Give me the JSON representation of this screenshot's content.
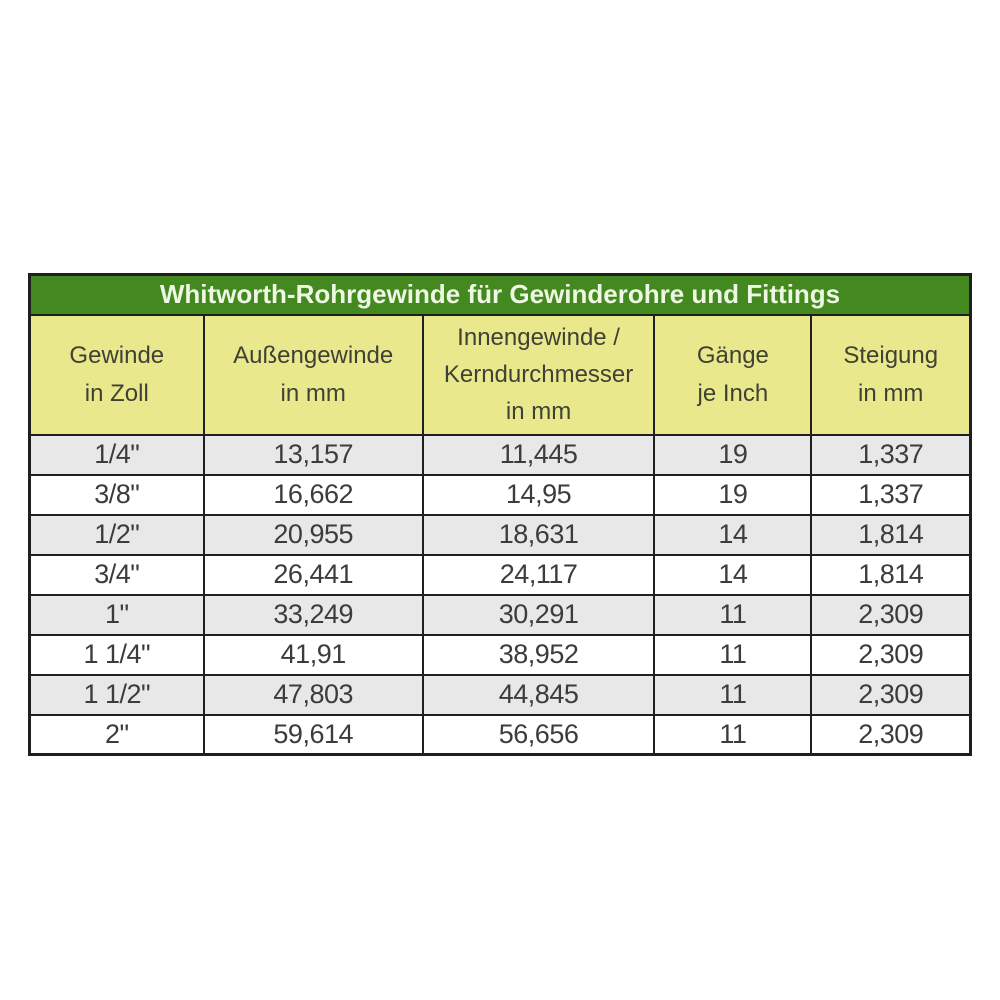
{
  "colors": {
    "title_bg": "#44891f",
    "title_text": "#eef6e4",
    "header_bg": "#e9e88d",
    "header_text": "#3f4134",
    "row_alt_bg": "#e8e8e8",
    "row_bg": "#ffffff",
    "border": "#1f1f1f",
    "text": "#3c3c3c"
  },
  "chart_data": {
    "type": "table",
    "title": "Whitworth-Rohrgewinde für Gewinderohre und Fittings",
    "columns": [
      "Gewinde\nin Zoll",
      "Außengewinde\nin mm",
      "Innengewinde /\nKerndurchmesser\nin mm",
      "Gänge\nje Inch",
      "Steigung\nin mm"
    ],
    "rows": [
      [
        "1/4\"",
        "13,157",
        "11,445",
        "19",
        "1,337"
      ],
      [
        "3/8\"",
        "16,662",
        "14,95",
        "19",
        "1,337"
      ],
      [
        "1/2\"",
        "20,955",
        "18,631",
        "14",
        "1,814"
      ],
      [
        "3/4\"",
        "26,441",
        "24,117",
        "14",
        "1,814"
      ],
      [
        "1\"",
        "33,249",
        "30,291",
        "11",
        "2,309"
      ],
      [
        "1 1/4\"",
        "41,91",
        "38,952",
        "11",
        "2,309"
      ],
      [
        "1 1/2\"",
        "47,803",
        "44,845",
        "11",
        "2,309"
      ],
      [
        "2\"",
        "59,614",
        "56,656",
        "11",
        "2,309"
      ]
    ]
  }
}
